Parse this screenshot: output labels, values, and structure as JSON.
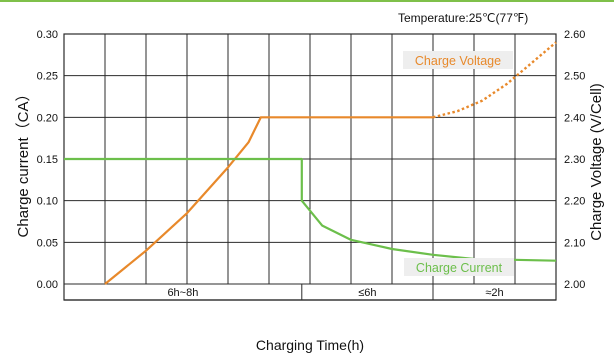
{
  "chart_data": {
    "type": "line",
    "temperature_note": "Temperature:25℃(77℉)",
    "xlabel": "Charging Time(h)",
    "ylabel_left": "Charge current（CA）",
    "ylabel_right": "Charge Voltage (V/Cell)",
    "left_axis": {
      "ticks": [
        "0.00",
        "0.05",
        "0.10",
        "0.15",
        "0.20",
        "0.25",
        "0.30"
      ],
      "range": [
        0,
        0.3
      ]
    },
    "right_axis": {
      "ticks": [
        "2.00",
        "2.10",
        "2.20",
        "2.30",
        "2.40",
        "2.50",
        "2.60"
      ],
      "range": [
        2.0,
        2.6
      ]
    },
    "phases": [
      "6h~8h",
      "≤6h",
      "≈2h"
    ],
    "grid": true,
    "series": [
      {
        "name": "Charge Voltage",
        "axis": "right",
        "color": "#e8892b",
        "points": [
          [
            1.0,
            2.0
          ],
          [
            2.0,
            2.08
          ],
          [
            3.0,
            2.17
          ],
          [
            4.0,
            2.28
          ],
          [
            4.5,
            2.34
          ],
          [
            4.8,
            2.4
          ],
          [
            4.8,
            2.4
          ],
          [
            9.0,
            2.4
          ]
        ],
        "dotted_points": [
          [
            9.0,
            2.4
          ],
          [
            9.6,
            2.415
          ],
          [
            10.2,
            2.44
          ],
          [
            10.8,
            2.48
          ],
          [
            11.4,
            2.53
          ],
          [
            12.0,
            2.58
          ]
        ]
      },
      {
        "name": "Charge Current",
        "axis": "left",
        "color": "#6cbf4b",
        "points": [
          [
            0,
            0.15
          ],
          [
            5.8,
            0.15
          ],
          [
            5.8,
            0.1
          ],
          [
            6.3,
            0.07
          ],
          [
            7.0,
            0.053
          ],
          [
            8.0,
            0.042
          ],
          [
            9.0,
            0.035
          ],
          [
            10.0,
            0.03
          ],
          [
            12.0,
            0.028
          ]
        ]
      }
    ],
    "colors": {
      "grid": "#2b2b2b",
      "top_border": "#7fc04a",
      "label_bg": "#eeeeee"
    }
  }
}
